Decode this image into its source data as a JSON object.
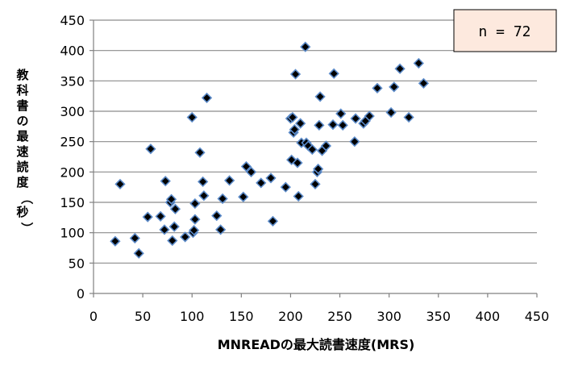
{
  "chart_data": {
    "type": "scatter",
    "xlabel": "MNREADの最大読書速度(MRS)",
    "ylabel": "教科書の最速読度（秒）",
    "xlim": [
      0,
      450
    ],
    "ylim": [
      0,
      450
    ],
    "xticks": [
      0,
      50,
      100,
      150,
      200,
      250,
      300,
      350,
      400,
      450
    ],
    "yticks": [
      0,
      50,
      100,
      150,
      200,
      250,
      300,
      350,
      400,
      450
    ],
    "grid": "horizontal",
    "annotation": "n = 72",
    "annotation_position": "top-right",
    "marker_color": "#000000",
    "marker_edge_color": "#5b8ac8",
    "points": [
      [
        22,
        86
      ],
      [
        27,
        180
      ],
      [
        42,
        91
      ],
      [
        46,
        66
      ],
      [
        55,
        126
      ],
      [
        58,
        238
      ],
      [
        68,
        127
      ],
      [
        72,
        105
      ],
      [
        73,
        185
      ],
      [
        78,
        150
      ],
      [
        79,
        155
      ],
      [
        80,
        87
      ],
      [
        82,
        110
      ],
      [
        83,
        139
      ],
      [
        93,
        93
      ],
      [
        100,
        290
      ],
      [
        101,
        100
      ],
      [
        102,
        104
      ],
      [
        103,
        122
      ],
      [
        103,
        148
      ],
      [
        108,
        232
      ],
      [
        111,
        184
      ],
      [
        112,
        161
      ],
      [
        115,
        322
      ],
      [
        125,
        128
      ],
      [
        129,
        105
      ],
      [
        131,
        156
      ],
      [
        138,
        186
      ],
      [
        152,
        159
      ],
      [
        155,
        209
      ],
      [
        160,
        200
      ],
      [
        170,
        182
      ],
      [
        180,
        190
      ],
      [
        182,
        119
      ],
      [
        195,
        175
      ],
      [
        200,
        288
      ],
      [
        201,
        220
      ],
      [
        202,
        290
      ],
      [
        203,
        265
      ],
      [
        204,
        270
      ],
      [
        205,
        361
      ],
      [
        207,
        215
      ],
      [
        208,
        160
      ],
      [
        210,
        280
      ],
      [
        211,
        248
      ],
      [
        215,
        406
      ],
      [
        216,
        248
      ],
      [
        218,
        243
      ],
      [
        222,
        237
      ],
      [
        225,
        180
      ],
      [
        227,
        200
      ],
      [
        228,
        205
      ],
      [
        229,
        277
      ],
      [
        230,
        324
      ],
      [
        232,
        235
      ],
      [
        236,
        243
      ],
      [
        243,
        278
      ],
      [
        244,
        362
      ],
      [
        251,
        296
      ],
      [
        253,
        277
      ],
      [
        265,
        250
      ],
      [
        266,
        288
      ],
      [
        274,
        280
      ],
      [
        276,
        284
      ],
      [
        280,
        292
      ],
      [
        288,
        338
      ],
      [
        302,
        298
      ],
      [
        305,
        340
      ],
      [
        311,
        370
      ],
      [
        320,
        290
      ],
      [
        330,
        379
      ],
      [
        335,
        346
      ]
    ]
  }
}
